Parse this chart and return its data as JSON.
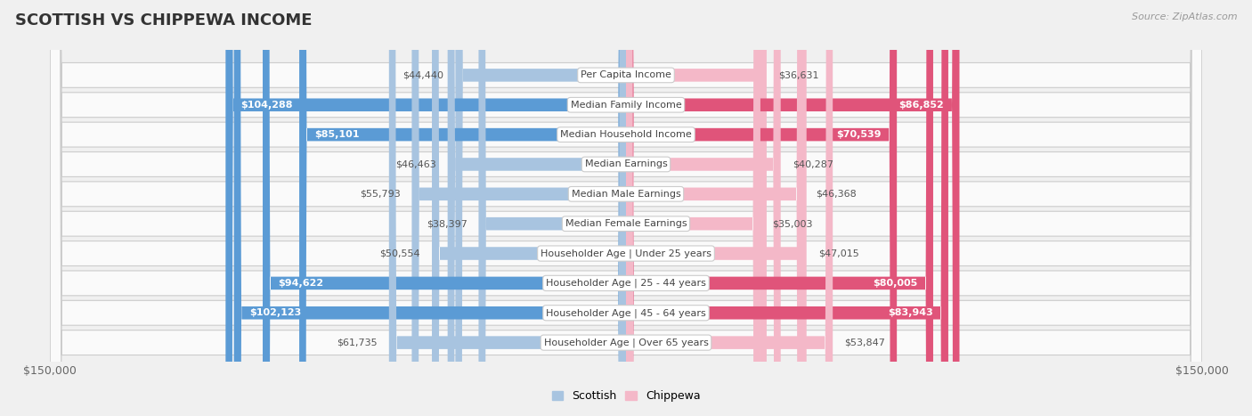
{
  "title": "SCOTTISH VS CHIPPEWA INCOME",
  "source": "Source: ZipAtlas.com",
  "categories": [
    "Per Capita Income",
    "Median Family Income",
    "Median Household Income",
    "Median Earnings",
    "Median Male Earnings",
    "Median Female Earnings",
    "Householder Age | Under 25 years",
    "Householder Age | 25 - 44 years",
    "Householder Age | 45 - 64 years",
    "Householder Age | Over 65 years"
  ],
  "scottish_values": [
    44440,
    104288,
    85101,
    46463,
    55793,
    38397,
    50554,
    94622,
    102123,
    61735
  ],
  "chippewa_values": [
    36631,
    86852,
    70539,
    40287,
    46368,
    35003,
    47015,
    80005,
    83943,
    53847
  ],
  "scottish_labels": [
    "$44,440",
    "$104,288",
    "$85,101",
    "$46,463",
    "$55,793",
    "$38,397",
    "$50,554",
    "$94,622",
    "$102,123",
    "$61,735"
  ],
  "chippewa_labels": [
    "$36,631",
    "$86,852",
    "$70,539",
    "$40,287",
    "$46,368",
    "$35,003",
    "$47,015",
    "$80,005",
    "$83,943",
    "$53,847"
  ],
  "scottish_color_light": "#a8c4e0",
  "scottish_color_dark": "#5b9bd5",
  "chippewa_color_light": "#f4b8c8",
  "chippewa_color_dark": "#e0547a",
  "max_value": 150000,
  "background_color": "#f0f0f0",
  "row_bg_color": "#fafafa",
  "title_fontsize": 13,
  "label_fontsize": 8,
  "category_fontsize": 8,
  "legend_fontsize": 9,
  "scottish_threshold": 80000,
  "chippewa_threshold": 70000
}
